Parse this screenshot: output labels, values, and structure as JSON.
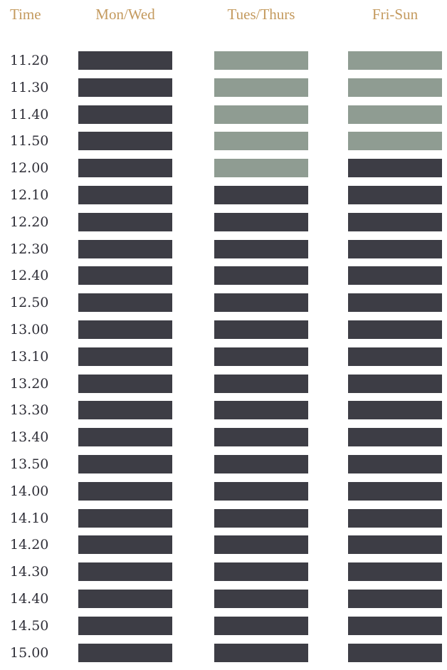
{
  "colors": {
    "header_text": "#c49a5e",
    "time_text": "#2f2f38",
    "booked": "#3d3d45",
    "available": "#8f9c92"
  },
  "header": {
    "time_label": "Time",
    "columns": [
      "Mon/Wed",
      "Tues/Thurs",
      "Fri-Sun"
    ]
  },
  "schedule": [
    {
      "time": "11.20",
      "slots": [
        "booked",
        "available",
        "available"
      ]
    },
    {
      "time": "11.30",
      "slots": [
        "booked",
        "available",
        "available"
      ]
    },
    {
      "time": "11.40",
      "slots": [
        "booked",
        "available",
        "available"
      ]
    },
    {
      "time": "11.50",
      "slots": [
        "booked",
        "available",
        "available"
      ]
    },
    {
      "time": "12.00",
      "slots": [
        "booked",
        "available",
        "booked"
      ]
    },
    {
      "time": "12.10",
      "slots": [
        "booked",
        "booked",
        "booked"
      ]
    },
    {
      "time": "12.20",
      "slots": [
        "booked",
        "booked",
        "booked"
      ]
    },
    {
      "time": "12.30",
      "slots": [
        "booked",
        "booked",
        "booked"
      ]
    },
    {
      "time": "12.40",
      "slots": [
        "booked",
        "booked",
        "booked"
      ]
    },
    {
      "time": "12.50",
      "slots": [
        "booked",
        "booked",
        "booked"
      ]
    },
    {
      "time": "13.00",
      "slots": [
        "booked",
        "booked",
        "booked"
      ]
    },
    {
      "time": "13.10",
      "slots": [
        "booked",
        "booked",
        "booked"
      ]
    },
    {
      "time": "13.20",
      "slots": [
        "booked",
        "booked",
        "booked"
      ]
    },
    {
      "time": "13.30",
      "slots": [
        "booked",
        "booked",
        "booked"
      ]
    },
    {
      "time": "13.40",
      "slots": [
        "booked",
        "booked",
        "booked"
      ]
    },
    {
      "time": "13.50",
      "slots": [
        "booked",
        "booked",
        "booked"
      ]
    },
    {
      "time": "14.00",
      "slots": [
        "booked",
        "booked",
        "booked"
      ]
    },
    {
      "time": "14.10",
      "slots": [
        "booked",
        "booked",
        "booked"
      ]
    },
    {
      "time": "14.20",
      "slots": [
        "booked",
        "booked",
        "booked"
      ]
    },
    {
      "time": "14.30",
      "slots": [
        "booked",
        "booked",
        "booked"
      ]
    },
    {
      "time": "14.40",
      "slots": [
        "booked",
        "booked",
        "booked"
      ]
    },
    {
      "time": "14.50",
      "slots": [
        "booked",
        "booked",
        "booked"
      ]
    },
    {
      "time": "15.00",
      "slots": [
        "booked",
        "booked",
        "booked"
      ]
    }
  ]
}
